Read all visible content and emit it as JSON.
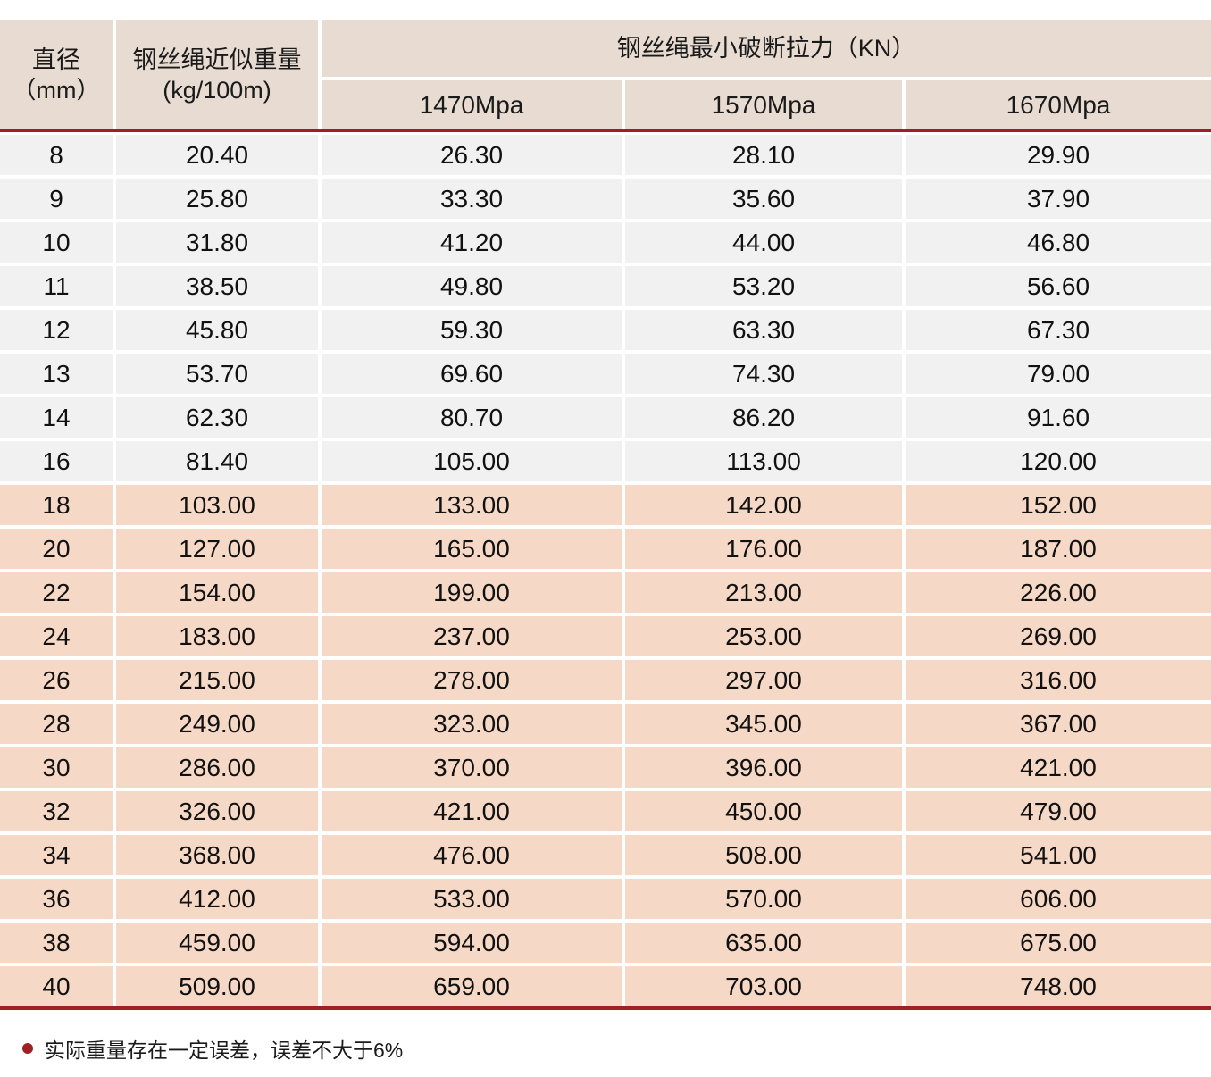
{
  "table": {
    "header": {
      "diameter_line1": "直径",
      "diameter_line2": "（mm）",
      "weight_line1": "钢丝绳近似重量",
      "weight_line2": "(kg/100m)",
      "breaking_force_title": "钢丝绳最小破断拉力（KN）",
      "grades": [
        "1470Mpa",
        "1570Mpa",
        "1670Mpa"
      ]
    },
    "rows": [
      {
        "diameter": "8",
        "weight": "20.40",
        "f1470": "26.30",
        "f1570": "28.10",
        "f1670": "29.90",
        "band": "gray"
      },
      {
        "diameter": "9",
        "weight": "25.80",
        "f1470": "33.30",
        "f1570": "35.60",
        "f1670": "37.90",
        "band": "gray"
      },
      {
        "diameter": "10",
        "weight": "31.80",
        "f1470": "41.20",
        "f1570": "44.00",
        "f1670": "46.80",
        "band": "gray"
      },
      {
        "diameter": "11",
        "weight": "38.50",
        "f1470": "49.80",
        "f1570": "53.20",
        "f1670": "56.60",
        "band": "gray"
      },
      {
        "diameter": "12",
        "weight": "45.80",
        "f1470": "59.30",
        "f1570": "63.30",
        "f1670": "67.30",
        "band": "gray"
      },
      {
        "diameter": "13",
        "weight": "53.70",
        "f1470": "69.60",
        "f1570": "74.30",
        "f1670": "79.00",
        "band": "gray"
      },
      {
        "diameter": "14",
        "weight": "62.30",
        "f1470": "80.70",
        "f1570": "86.20",
        "f1670": "91.60",
        "band": "gray"
      },
      {
        "diameter": "16",
        "weight": "81.40",
        "f1470": "105.00",
        "f1570": "113.00",
        "f1670": "120.00",
        "band": "gray"
      },
      {
        "diameter": "18",
        "weight": "103.00",
        "f1470": "133.00",
        "f1570": "142.00",
        "f1670": "152.00",
        "band": "peach"
      },
      {
        "diameter": "20",
        "weight": "127.00",
        "f1470": "165.00",
        "f1570": "176.00",
        "f1670": "187.00",
        "band": "peach"
      },
      {
        "diameter": "22",
        "weight": "154.00",
        "f1470": "199.00",
        "f1570": "213.00",
        "f1670": "226.00",
        "band": "peach"
      },
      {
        "diameter": "24",
        "weight": "183.00",
        "f1470": "237.00",
        "f1570": "253.00",
        "f1670": "269.00",
        "band": "peach"
      },
      {
        "diameter": "26",
        "weight": "215.00",
        "f1470": "278.00",
        "f1570": "297.00",
        "f1670": "316.00",
        "band": "peach"
      },
      {
        "diameter": "28",
        "weight": "249.00",
        "f1470": "323.00",
        "f1570": "345.00",
        "f1670": "367.00",
        "band": "peach"
      },
      {
        "diameter": "30",
        "weight": "286.00",
        "f1470": "370.00",
        "f1570": "396.00",
        "f1670": "421.00",
        "band": "peach"
      },
      {
        "diameter": "32",
        "weight": "326.00",
        "f1470": "421.00",
        "f1570": "450.00",
        "f1670": "479.00",
        "band": "peach"
      },
      {
        "diameter": "34",
        "weight": "368.00",
        "f1470": "476.00",
        "f1570": "508.00",
        "f1670": "541.00",
        "band": "peach"
      },
      {
        "diameter": "36",
        "weight": "412.00",
        "f1470": "533.00",
        "f1570": "570.00",
        "f1670": "606.00",
        "band": "peach"
      },
      {
        "diameter": "38",
        "weight": "459.00",
        "f1470": "594.00",
        "f1570": "635.00",
        "f1670": "675.00",
        "band": "peach"
      },
      {
        "diameter": "40",
        "weight": "509.00",
        "f1470": "659.00",
        "f1570": "703.00",
        "f1670": "748.00",
        "band": "peach"
      }
    ]
  },
  "footnote": {
    "text": "实际重量存在一定误差，误差不大于6%"
  },
  "colors": {
    "accent_red": "#a11f24",
    "header_bg": "#e8dcd2",
    "row_gray": "#f1f1f1",
    "row_peach": "#f6d8c6"
  }
}
